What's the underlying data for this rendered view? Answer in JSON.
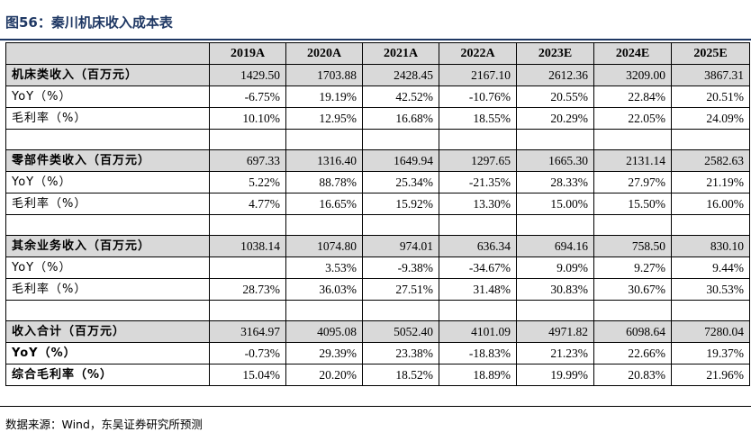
{
  "title": "图56：秦川机床收入成本表",
  "columns": [
    "",
    "2019A",
    "2020A",
    "2021A",
    "2022A",
    "2023E",
    "2024E",
    "2025E"
  ],
  "rows": [
    {
      "label": "机床类收入（百万元）",
      "values": [
        "1429.50",
        "1703.88",
        "2428.45",
        "2167.10",
        "2612.36",
        "3209.00",
        "3867.31"
      ],
      "kind": "section"
    },
    {
      "label": "YoY（%）",
      "values": [
        "-6.75%",
        "19.19%",
        "42.52%",
        "-10.76%",
        "20.55%",
        "22.84%",
        "20.51%"
      ],
      "kind": "normal"
    },
    {
      "label": "毛利率（%）",
      "values": [
        "10.10%",
        "12.95%",
        "16.68%",
        "18.55%",
        "20.29%",
        "22.05%",
        "24.09%"
      ],
      "kind": "normal"
    },
    {
      "label": "",
      "values": [
        "",
        "",
        "",
        "",
        "",
        "",
        ""
      ],
      "kind": "blank"
    },
    {
      "label": "零部件类收入（百万元）",
      "values": [
        "697.33",
        "1316.40",
        "1649.94",
        "1297.65",
        "1665.30",
        "2131.14",
        "2582.63"
      ],
      "kind": "section"
    },
    {
      "label": "YoY（%）",
      "values": [
        "5.22%",
        "88.78%",
        "25.34%",
        "-21.35%",
        "28.33%",
        "27.97%",
        "21.19%"
      ],
      "kind": "normal"
    },
    {
      "label": "毛利率（%）",
      "values": [
        "4.77%",
        "16.65%",
        "15.92%",
        "13.30%",
        "15.00%",
        "15.50%",
        "16.00%"
      ],
      "kind": "normal"
    },
    {
      "label": "",
      "values": [
        "",
        "",
        "",
        "",
        "",
        "",
        ""
      ],
      "kind": "blank"
    },
    {
      "label": "其余业务收入（百万元）",
      "values": [
        "1038.14",
        "1074.80",
        "974.01",
        "636.34",
        "694.16",
        "758.50",
        "830.10"
      ],
      "kind": "section"
    },
    {
      "label": "YoY（%）",
      "values": [
        "",
        "3.53%",
        "-9.38%",
        "-34.67%",
        "9.09%",
        "9.27%",
        "9.44%"
      ],
      "kind": "normal"
    },
    {
      "label": "毛利率（%）",
      "values": [
        "28.73%",
        "36.03%",
        "27.51%",
        "31.48%",
        "30.83%",
        "30.67%",
        "30.53%"
      ],
      "kind": "normal"
    },
    {
      "label": "",
      "values": [
        "",
        "",
        "",
        "",
        "",
        "",
        ""
      ],
      "kind": "blank"
    },
    {
      "label": "收入合计（百万元）",
      "values": [
        "3164.97",
        "4095.08",
        "5052.40",
        "4101.09",
        "4971.82",
        "6098.64",
        "7280.04"
      ],
      "kind": "section"
    },
    {
      "label": "YoY（%）",
      "values": [
        "-0.73%",
        "29.39%",
        "23.38%",
        "-18.83%",
        "21.23%",
        "22.66%",
        "19.37%"
      ],
      "kind": "bold"
    },
    {
      "label": "综合毛利率（%）",
      "values": [
        "15.04%",
        "20.20%",
        "18.52%",
        "18.89%",
        "19.99%",
        "20.83%",
        "21.96%"
      ],
      "kind": "bold"
    }
  ],
  "source": "数据来源：Wind，东吴证券研究所预测",
  "colors": {
    "title": "#1f3864",
    "header_bg": "#d9d9d9",
    "section_bg": "#d9d9d9"
  }
}
